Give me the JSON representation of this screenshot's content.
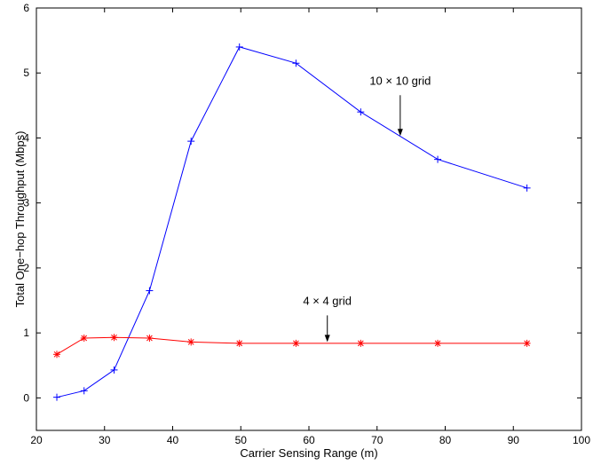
{
  "chart_data": {
    "type": "line",
    "title": "",
    "xlabel": "Carrier Sensing Range (m)",
    "ylabel": "Total One−hop Throughput (Mbps)",
    "xlim": [
      20,
      100
    ],
    "ylim": [
      -0.5,
      6
    ],
    "xticks": [
      20,
      30,
      40,
      50,
      60,
      70,
      80,
      90,
      100
    ],
    "yticks": [
      0,
      1,
      2,
      3,
      4,
      5,
      6
    ],
    "grid": false,
    "legend": "none",
    "series": [
      {
        "color": "#0000ff",
        "marker": "plus",
        "x": [
          23,
          27,
          31.4,
          36.6,
          42.7,
          49.8,
          58.1,
          67.6,
          78.9,
          92
        ],
        "y": [
          0.01,
          0.11,
          0.43,
          1.65,
          3.95,
          5.4,
          5.15,
          4.4,
          3.67,
          3.23
        ]
      },
      {
        "color": "#ff0000",
        "marker": "asterisk",
        "x": [
          23,
          27,
          31.4,
          36.6,
          42.7,
          49.8,
          58.1,
          67.6,
          78.9,
          92
        ],
        "y": [
          0.67,
          0.92,
          0.93,
          0.92,
          0.86,
          0.84,
          0.84,
          0.84,
          0.84,
          0.84
        ]
      }
    ],
    "annotations": [
      {
        "text": "10 × 10 grid",
        "arrow_tip": {
          "x": 73.4,
          "y": 4.03
        }
      },
      {
        "text": "4 × 4 grid",
        "arrow_tip": {
          "x": 62.7,
          "y": 0.86
        }
      }
    ]
  }
}
